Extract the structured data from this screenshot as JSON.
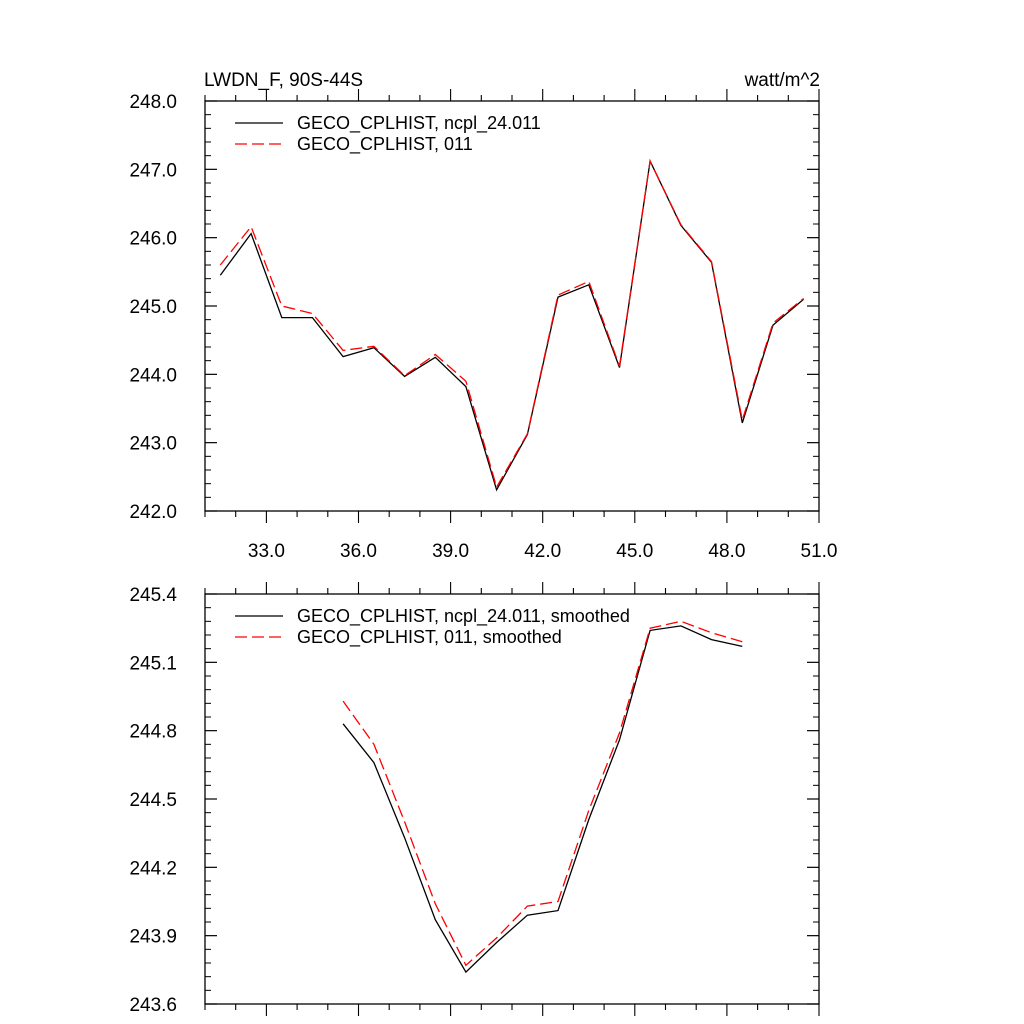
{
  "colors": {
    "series_a": "#000000",
    "series_b": "#ff0000",
    "axis": "#000000"
  },
  "chart_data": [
    {
      "type": "line",
      "title": "LWDN_F, 90S-44S",
      "units": "watt/m^2",
      "xlabel": "",
      "ylabel": "",
      "xlim": [
        31,
        51
      ],
      "ylim": [
        242.0,
        248.0
      ],
      "xticks": [
        "33.0",
        "36.0",
        "39.0",
        "42.0",
        "45.0",
        "48.0",
        "51.0"
      ],
      "yticks": [
        "242.0",
        "243.0",
        "244.0",
        "245.0",
        "246.0",
        "247.0",
        "248.0"
      ],
      "legend_position": "top-left",
      "grid": false,
      "series": [
        {
          "name": "GECO_CPLHIST, ncpl_24.011",
          "style": "solid",
          "x": [
            31.5,
            32.5,
            33.5,
            34.5,
            35.5,
            36.5,
            37.5,
            38.5,
            39.5,
            40.5,
            41.5,
            42.5,
            43.5,
            44.5,
            45.5,
            46.5,
            47.5,
            48.5,
            49.5,
            50.5
          ],
          "values": [
            245.45,
            246.06,
            244.83,
            244.83,
            244.26,
            244.39,
            243.97,
            244.25,
            243.82,
            242.31,
            243.12,
            245.13,
            245.31,
            244.1,
            247.12,
            246.18,
            245.64,
            243.29,
            244.72,
            245.1
          ]
        },
        {
          "name": "GECO_CPLHIST, 011",
          "style": "dashed",
          "x": [
            31.5,
            32.5,
            33.5,
            34.5,
            35.5,
            36.5,
            37.5,
            38.5,
            39.5,
            40.5,
            41.5,
            42.5,
            43.5,
            44.5,
            45.5,
            46.5,
            47.5,
            48.5,
            49.5,
            50.5
          ],
          "values": [
            245.6,
            246.16,
            245.0,
            244.89,
            244.35,
            244.41,
            243.98,
            244.29,
            243.9,
            242.35,
            243.13,
            245.16,
            245.36,
            244.12,
            247.12,
            246.19,
            245.65,
            243.33,
            244.75,
            245.11
          ]
        }
      ]
    },
    {
      "type": "line",
      "title": "",
      "xlabel": "",
      "ylabel": "",
      "xlim": [
        31,
        51
      ],
      "ylim": [
        243.6,
        245.4
      ],
      "yticks": [
        "243.6",
        "243.9",
        "244.2",
        "244.5",
        "244.8",
        "245.1",
        "245.4"
      ],
      "legend_position": "top-left",
      "grid": false,
      "series": [
        {
          "name": "GECO_CPLHIST, ncpl_24.011, smoothed",
          "style": "solid",
          "x": [
            35.5,
            36.5,
            37.5,
            38.5,
            39.5,
            40.5,
            41.5,
            42.5,
            43.5,
            44.5,
            45.5,
            46.5,
            47.5,
            48.5,
            49.5,
            50.5
          ],
          "values": [
            244.83,
            244.66,
            244.33,
            243.97,
            243.74,
            243.87,
            243.99,
            244.01,
            244.41,
            244.76,
            245.24,
            245.26,
            245.2,
            245.17,
            null,
            null
          ]
        },
        {
          "name": "GECO_CPLHIST, 011, smoothed",
          "style": "dashed",
          "x": [
            35.5,
            36.5,
            37.5,
            38.5,
            39.5,
            40.5,
            41.5,
            42.5,
            43.5,
            44.5,
            45.5,
            46.5,
            47.5,
            48.5,
            49.5,
            50.5
          ],
          "values": [
            244.93,
            244.74,
            244.4,
            244.04,
            243.77,
            243.89,
            244.03,
            244.05,
            244.45,
            244.79,
            245.25,
            245.28,
            245.23,
            245.19,
            null,
            null
          ]
        }
      ]
    }
  ]
}
